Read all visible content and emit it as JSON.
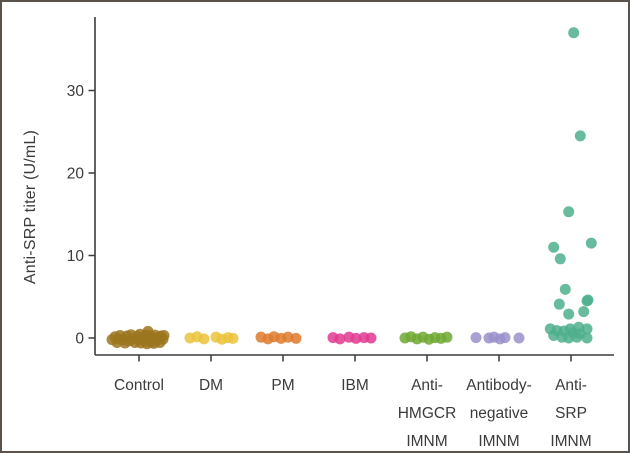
{
  "figure": {
    "background": "#ffffff",
    "border_color": "#5b534b"
  },
  "chart_data": {
    "type": "scatter",
    "title": "",
    "xlabel": "",
    "ylabel": "Anti-SRP titer (U/mL)",
    "ylim": [
      -2.1,
      39
    ],
    "yticks": [
      0,
      10,
      20,
      30
    ],
    "grid": false,
    "legend_position": "none",
    "axis_color": "#3b3b3b",
    "point_radius_px": 5.5,
    "point_opacity": 0.85,
    "categories": [
      "Control",
      "DM",
      "PM",
      "IBM",
      "Anti-HMGCR IMNM",
      "Antibody-negative IMNM",
      "Anti-SRP IMNM"
    ],
    "groups": [
      {
        "label": "Control",
        "label_lines": [
          "Control"
        ],
        "color": "#9c7520",
        "points_dx_value": [
          [
            -27,
            -0.2
          ],
          [
            -24,
            0.15
          ],
          [
            -22,
            -0.55
          ],
          [
            -21,
            -0.1
          ],
          [
            -19,
            0.3
          ],
          [
            -16,
            -0.2
          ],
          [
            -14,
            -0.6
          ],
          [
            -12,
            0.25
          ],
          [
            -10,
            -0.35
          ],
          [
            -8,
            0.4
          ],
          [
            -6,
            -0.1
          ],
          [
            -4,
            -0.55
          ],
          [
            -2,
            0.2
          ],
          [
            0,
            -0.25
          ],
          [
            1,
            0.45
          ],
          [
            2,
            -0.6
          ],
          [
            4,
            0.1
          ],
          [
            6,
            -0.35
          ],
          [
            7,
            0.35
          ],
          [
            8,
            -0.7
          ],
          [
            9,
            0.8
          ],
          [
            10,
            0.3
          ],
          [
            11,
            -0.15
          ],
          [
            12,
            -0.5
          ],
          [
            14,
            0.05
          ],
          [
            15,
            -0.65
          ],
          [
            16,
            0.35
          ],
          [
            18,
            -0.3
          ],
          [
            20,
            0.1
          ],
          [
            21,
            -0.55
          ],
          [
            22,
            0.25
          ],
          [
            24,
            -0.15
          ],
          [
            25,
            0.3
          ]
        ]
      },
      {
        "label": "DM",
        "label_lines": [
          "DM"
        ],
        "color": "#eac33c",
        "points_dx_value": [
          [
            -21,
            0
          ],
          [
            -14,
            0.15
          ],
          [
            -7,
            -0.1
          ],
          [
            5,
            0.1
          ],
          [
            11,
            -0.15
          ],
          [
            17,
            0.05
          ],
          [
            22,
            -0.05
          ]
        ]
      },
      {
        "label": "PM",
        "label_lines": [
          "PM"
        ],
        "color": "#de7a2d",
        "points_dx_value": [
          [
            -22,
            0.1
          ],
          [
            -15,
            -0.1
          ],
          [
            -9,
            0.15
          ],
          [
            -2,
            -0.05
          ],
          [
            5,
            0.1
          ],
          [
            13,
            -0.05
          ]
        ]
      },
      {
        "label": "IBM",
        "label_lines": [
          "IBM"
        ],
        "color": "#e23a90",
        "points_dx_value": [
          [
            -22,
            0.05
          ],
          [
            -15,
            -0.1
          ],
          [
            -6,
            0.1
          ],
          [
            1,
            -0.05
          ],
          [
            9,
            0.05
          ],
          [
            16,
            0
          ]
        ]
      },
      {
        "label": "Anti-HMGCR IMNM",
        "label_lines": [
          "Anti-",
          "HMGCR",
          "IMNM"
        ],
        "color": "#6fa833",
        "points_dx_value": [
          [
            -22,
            0
          ],
          [
            -16,
            0.15
          ],
          [
            -10,
            -0.1
          ],
          [
            -4,
            0.1
          ],
          [
            2,
            -0.15
          ],
          [
            8,
            0.05
          ],
          [
            14,
            -0.05
          ],
          [
            20,
            0.1
          ]
        ]
      },
      {
        "label": "Antibody-negative IMNM",
        "label_lines": [
          "Antibody-",
          "negative",
          "IMNM"
        ],
        "color": "#9a90cb",
        "points_dx_value": [
          [
            -23,
            0.05
          ],
          [
            -10,
            0
          ],
          [
            -5,
            0.1
          ],
          [
            1,
            -0.1
          ],
          [
            6,
            0.05
          ],
          [
            20,
            0
          ]
        ]
      },
      {
        "label": "Anti-SRP IMNM",
        "label_lines": [
          "Anti-",
          "SRP",
          "IMNM"
        ],
        "color": "#4faf8d",
        "points_dx_value": [
          [
            2.7,
            37
          ],
          [
            9.3,
            24.5
          ],
          [
            -2.3,
            15.3
          ],
          [
            20.3,
            11.5
          ],
          [
            -17.3,
            11
          ],
          [
            -10.7,
            9.6
          ],
          [
            -5.7,
            5.9
          ],
          [
            17,
            4.6
          ],
          [
            -11.7,
            4.1
          ],
          [
            16,
            4.5
          ],
          [
            12.7,
            3.2
          ],
          [
            -2.3,
            2.9
          ],
          [
            7.7,
            1.3
          ],
          [
            -20.7,
            1.1
          ],
          [
            -0.7,
            1.1
          ],
          [
            16,
            1.1
          ],
          [
            -14,
            0.9
          ],
          [
            -7,
            0.85
          ],
          [
            2,
            0.6
          ],
          [
            9,
            0.5
          ],
          [
            -17.3,
            0.3
          ],
          [
            -9,
            0.1
          ],
          [
            6,
            0.1
          ],
          [
            -2.3,
            0
          ],
          [
            16,
            0
          ]
        ]
      }
    ]
  }
}
